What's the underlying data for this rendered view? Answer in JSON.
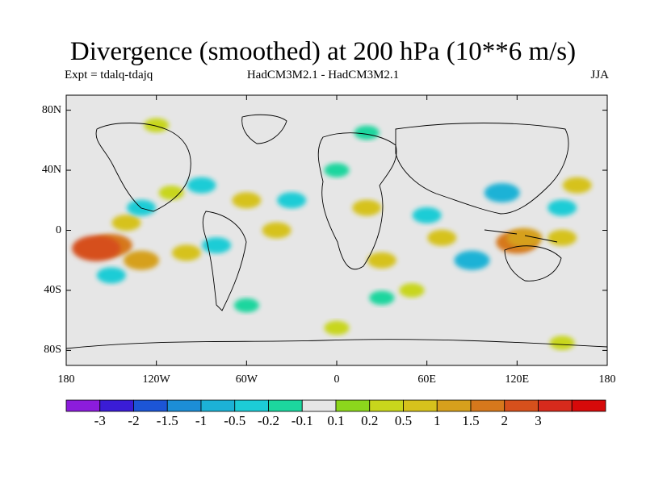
{
  "title": "Divergence (smoothed) at 200 hPa (10**6 m/s)",
  "experiment": "Expt = tdalq-tdajq",
  "model_comparison": "HadCM3M2.1 - HadCM3M2.1",
  "season": "JJA",
  "map": {
    "projection": "equirectangular",
    "lon_range": [
      -180,
      180
    ],
    "lat_range": [
      -90,
      90
    ],
    "background_color": "#e6e6e6",
    "lat_tick_labels": [
      "80N",
      "40N",
      "0",
      "40S",
      "80S"
    ],
    "lat_tick_values": [
      80,
      40,
      0,
      -40,
      -80
    ],
    "lon_tick_labels": [
      "180",
      "120W",
      "60W",
      "0",
      "60E",
      "120E",
      "180"
    ],
    "lon_tick_values": [
      -180,
      -120,
      -60,
      0,
      60,
      120,
      180
    ],
    "field_regions": [
      {
        "lon": -150,
        "lat": -10,
        "value": 1.5
      },
      {
        "lon": -160,
        "lat": -12,
        "value": 2
      },
      {
        "lon": -130,
        "lat": -20,
        "value": 1
      },
      {
        "lon": -100,
        "lat": -15,
        "value": 0.5
      },
      {
        "lon": -140,
        "lat": 5,
        "value": 0.5
      },
      {
        "lon": -110,
        "lat": 25,
        "value": 0.2
      },
      {
        "lon": -60,
        "lat": 20,
        "value": 0.5
      },
      {
        "lon": -40,
        "lat": 0,
        "value": 0.5
      },
      {
        "lon": 30,
        "lat": -20,
        "value": 0.5
      },
      {
        "lon": 70,
        "lat": -5,
        "value": 0.5
      },
      {
        "lon": 120,
        "lat": -8,
        "value": 1.5
      },
      {
        "lon": 125,
        "lat": -5,
        "value": 1
      },
      {
        "lon": 150,
        "lat": -5,
        "value": 0.5
      },
      {
        "lon": 160,
        "lat": 30,
        "value": 0.5
      },
      {
        "lon": 20,
        "lat": 15,
        "value": 0.5
      },
      {
        "lon": 50,
        "lat": -40,
        "value": 0.2
      },
      {
        "lon": -150,
        "lat": -30,
        "value": -0.5
      },
      {
        "lon": -130,
        "lat": 15,
        "value": -0.5
      },
      {
        "lon": -90,
        "lat": 30,
        "value": -0.5
      },
      {
        "lon": -30,
        "lat": 20,
        "value": -0.5
      },
      {
        "lon": 0,
        "lat": 40,
        "value": -0.2
      },
      {
        "lon": 60,
        "lat": 10,
        "value": -0.5
      },
      {
        "lon": 90,
        "lat": -20,
        "value": -1
      },
      {
        "lon": 110,
        "lat": 25,
        "value": -1
      },
      {
        "lon": 150,
        "lat": 15,
        "value": -0.5
      },
      {
        "lon": -80,
        "lat": -10,
        "value": -0.5
      },
      {
        "lon": 30,
        "lat": -45,
        "value": -0.2
      },
      {
        "lon": -60,
        "lat": -50,
        "value": -0.2
      },
      {
        "lon": 20,
        "lat": 65,
        "value": -0.2
      },
      {
        "lon": -120,
        "lat": 70,
        "value": 0.2
      },
      {
        "lon": 0,
        "lat": -65,
        "value": 0.2
      },
      {
        "lon": 150,
        "lat": -75,
        "value": 0.2
      }
    ]
  },
  "colorbar": {
    "colors": [
      "#8c1cdc",
      "#3a1cd6",
      "#1c55d6",
      "#1c8ed6",
      "#1cb2d6",
      "#1cccd6",
      "#1cd69e",
      "#e6e6e6",
      "#8cd61c",
      "#c8d61c",
      "#d6c21c",
      "#d6a01c",
      "#d6781c",
      "#d6501c",
      "#d62a1c",
      "#d60a0a"
    ],
    "levels": [
      -3,
      -2,
      -1.5,
      -1,
      -0.5,
      -0.2,
      -0.1,
      0.1,
      0.2,
      0.5,
      1,
      1.5,
      2,
      3
    ],
    "labels": [
      "-3",
      "-2",
      "-1.5",
      "-1",
      "-0.5",
      "-0.2",
      "-0.1",
      "0.1",
      "0.2",
      "0.5",
      "1",
      "1.5",
      "2",
      "3"
    ]
  }
}
